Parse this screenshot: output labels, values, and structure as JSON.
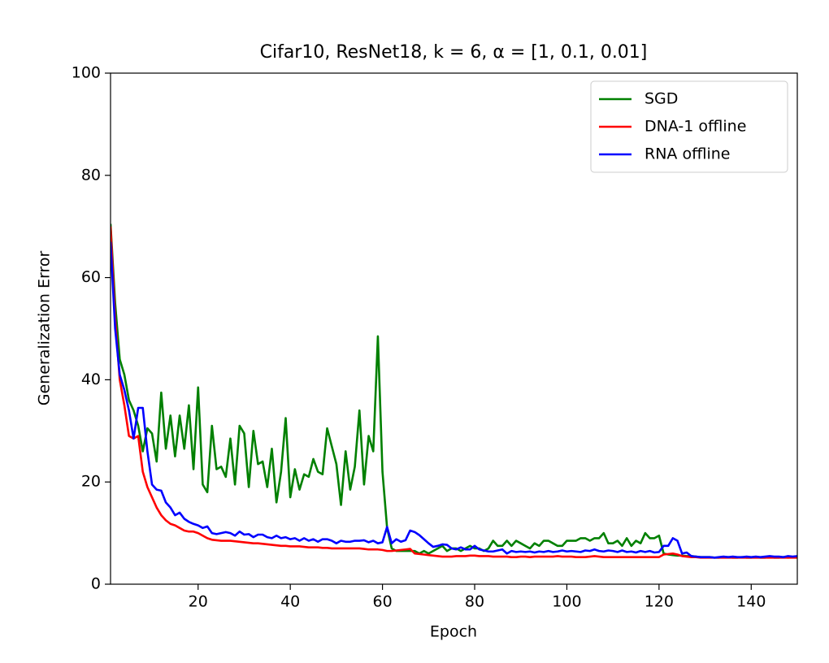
{
  "chart_data": {
    "type": "line",
    "title": "Cifar10, ResNet18, k = 6, α = [1, 0.1, 0.01]",
    "x_label": "Epoch",
    "y_label": "Generalization Error",
    "x": [
      1,
      2,
      3,
      4,
      5,
      6,
      7,
      8,
      9,
      10,
      11,
      12,
      13,
      14,
      15,
      16,
      17,
      18,
      19,
      20,
      21,
      22,
      23,
      24,
      25,
      26,
      27,
      28,
      29,
      30,
      31,
      32,
      33,
      34,
      35,
      36,
      37,
      38,
      39,
      40,
      41,
      42,
      43,
      44,
      45,
      46,
      47,
      48,
      49,
      50,
      51,
      52,
      53,
      54,
      55,
      56,
      57,
      58,
      59,
      60,
      61,
      62,
      63,
      64,
      65,
      66,
      67,
      68,
      69,
      70,
      71,
      72,
      73,
      74,
      75,
      76,
      77,
      78,
      79,
      80,
      81,
      82,
      83,
      84,
      85,
      86,
      87,
      88,
      89,
      90,
      91,
      92,
      93,
      94,
      95,
      96,
      97,
      98,
      99,
      100,
      101,
      102,
      103,
      104,
      105,
      106,
      107,
      108,
      109,
      110,
      111,
      112,
      113,
      114,
      115,
      116,
      117,
      118,
      119,
      120,
      121,
      122,
      123,
      124,
      125,
      126,
      127,
      128,
      129,
      130,
      131,
      132,
      133,
      134,
      135,
      136,
      137,
      138,
      139,
      140,
      141,
      142,
      143,
      144,
      145,
      146,
      147,
      148,
      149,
      150
    ],
    "series": [
      {
        "name": "SGD",
        "color": "#008000",
        "values": [
          70.5,
          55,
          44,
          41,
          36,
          34,
          31,
          26,
          30.5,
          29.5,
          24,
          37.5,
          26.5,
          33,
          25,
          33,
          26.5,
          35,
          22.5,
          38.5,
          19.5,
          18,
          31,
          22.5,
          23,
          21,
          28.5,
          19.5,
          31,
          29.5,
          19,
          30,
          23.5,
          24,
          19,
          26.5,
          16,
          22,
          32.5,
          17,
          22.5,
          18.5,
          21.5,
          21,
          24.5,
          22,
          21.5,
          30.5,
          27,
          23.5,
          15.5,
          26,
          18.5,
          23,
          34,
          19.5,
          29,
          26,
          48.5,
          22,
          11,
          7,
          6.5,
          6.5,
          6.5,
          6.5,
          6.5,
          6,
          6.5,
          6,
          6.5,
          7,
          7.5,
          6.5,
          7,
          7,
          6.5,
          7,
          7.5,
          7,
          7,
          6.5,
          7,
          8.5,
          7.5,
          7.5,
          8.5,
          7.5,
          8.5,
          8,
          7.5,
          7,
          8,
          7.5,
          8.5,
          8.5,
          8,
          7.5,
          7.5,
          8.5,
          8.5,
          8.5,
          9,
          9,
          8.5,
          9,
          9,
          10,
          8,
          8,
          8.5,
          7.5,
          9,
          7.5,
          8.5,
          8,
          10,
          9,
          9,
          9.5,
          6,
          5.8,
          5.7,
          5.6,
          5.6,
          5.5,
          5.5,
          5.4,
          5.3,
          5.3,
          5.3,
          5.2,
          5.2,
          5.3,
          5.3,
          5.2,
          5.2,
          5.3,
          5.2,
          5.2,
          5.3,
          5.2,
          5.2,
          5.3,
          5.2,
          5.2,
          5.3,
          5.2,
          5.3,
          5.3
        ]
      },
      {
        "name": "DNA-1 offline",
        "color": "#ff0000",
        "values": [
          70,
          52,
          40,
          35,
          29,
          28.5,
          29,
          22,
          19,
          17,
          15,
          13.5,
          12.5,
          11.8,
          11.5,
          11,
          10.5,
          10.3,
          10.3,
          10,
          9.5,
          9,
          8.7,
          8.6,
          8.5,
          8.5,
          8.5,
          8.4,
          8.3,
          8.2,
          8.1,
          8,
          8,
          7.9,
          7.8,
          7.7,
          7.6,
          7.5,
          7.5,
          7.4,
          7.4,
          7.4,
          7.3,
          7.2,
          7.2,
          7.2,
          7.1,
          7.1,
          7,
          7,
          7,
          7,
          7,
          7,
          7,
          6.9,
          6.8,
          6.8,
          6.8,
          6.7,
          6.5,
          6.5,
          6.6,
          6.7,
          6.8,
          6.9,
          6,
          5.9,
          5.8,
          5.7,
          5.6,
          5.5,
          5.4,
          5.4,
          5.4,
          5.5,
          5.5,
          5.5,
          5.6,
          5.6,
          5.5,
          5.5,
          5.5,
          5.4,
          5.4,
          5.4,
          5.4,
          5.3,
          5.3,
          5.4,
          5.4,
          5.3,
          5.4,
          5.4,
          5.4,
          5.4,
          5.4,
          5.5,
          5.4,
          5.4,
          5.4,
          5.3,
          5.3,
          5.3,
          5.4,
          5.5,
          5.4,
          5.3,
          5.3,
          5.3,
          5.3,
          5.3,
          5.3,
          5.3,
          5.3,
          5.3,
          5.3,
          5.3,
          5.3,
          5.3,
          5.8,
          5.9,
          6.0,
          5.8,
          5.5,
          5.4,
          5.3,
          5.3,
          5.2,
          5.2,
          5.2,
          5.2,
          5.2,
          5.2,
          5.2,
          5.2,
          5.2,
          5.2,
          5.2,
          5.2,
          5.2,
          5.2,
          5.2,
          5.2,
          5.2,
          5.2,
          5.2,
          5.2,
          5.2,
          5.2
        ]
      },
      {
        "name": "RNA offline",
        "color": "#0000ff",
        "values": [
          67,
          50,
          41,
          38,
          34,
          28.5,
          34.5,
          34.5,
          26,
          19.5,
          18.5,
          18.3,
          16,
          15,
          13.5,
          14,
          12.8,
          12.2,
          11.8,
          11.5,
          11,
          11.3,
          10,
          9.8,
          10,
          10.2,
          10,
          9.5,
          10.3,
          9.7,
          9.8,
          9.2,
          9.7,
          9.7,
          9.2,
          9,
          9.5,
          9,
          9.2,
          8.8,
          9,
          8.5,
          9,
          8.5,
          8.8,
          8.3,
          8.8,
          8.8,
          8.5,
          8,
          8.5,
          8.3,
          8.3,
          8.5,
          8.5,
          8.6,
          8.2,
          8.5,
          8,
          8.2,
          11.2,
          8,
          8.8,
          8.3,
          8.6,
          10.5,
          10.2,
          9.6,
          8.8,
          8,
          7.3,
          7.5,
          7.8,
          7.7,
          7,
          6.8,
          7.2,
          6.8,
          6.8,
          7.5,
          6.8,
          6.6,
          6.4,
          6.4,
          6.6,
          6.8,
          6,
          6.5,
          6.3,
          6.4,
          6.3,
          6.4,
          6.2,
          6.4,
          6.3,
          6.5,
          6.3,
          6.4,
          6.6,
          6.4,
          6.5,
          6.4,
          6.3,
          6.6,
          6.5,
          6.8,
          6.5,
          6.4,
          6.6,
          6.5,
          6.3,
          6.6,
          6.3,
          6.4,
          6.2,
          6.5,
          6.3,
          6.5,
          6.2,
          6.3,
          7.5,
          7.5,
          9,
          8.5,
          6,
          6.2,
          5.5,
          5.4,
          5.3,
          5.3,
          5.3,
          5.2,
          5.3,
          5.4,
          5.3,
          5.4,
          5.3,
          5.3,
          5.4,
          5.3,
          5.4,
          5.3,
          5.4,
          5.5,
          5.4,
          5.4,
          5.3,
          5.5,
          5.4,
          5.5
        ]
      }
    ],
    "xlim": [
      1,
      150
    ],
    "ylim": [
      0,
      100
    ],
    "xticks": [
      20,
      40,
      60,
      80,
      100,
      120,
      140
    ],
    "yticks": [
      0,
      20,
      40,
      60,
      80,
      100
    ],
    "grid": false,
    "legend": "upper right"
  }
}
